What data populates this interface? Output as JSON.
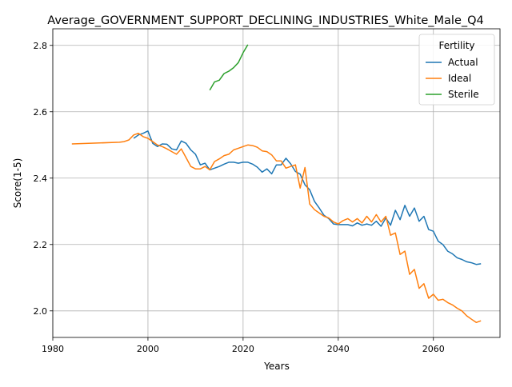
{
  "chart_data": {
    "type": "line",
    "title": "Average_GOVERNMENT_SUPPORT_DECLINING_INDUSTRIES_White_Male_Q4",
    "xlabel": "Years",
    "ylabel": "Score(1-5)",
    "xlim": [
      1980,
      2074
    ],
    "ylim": [
      1.92,
      2.85
    ],
    "xticks": [
      1980,
      2000,
      2020,
      2040,
      2060
    ],
    "yticks": [
      2.0,
      2.2,
      2.4,
      2.6,
      2.8
    ],
    "xtick_labels": [
      "1980",
      "2000",
      "2020",
      "2040",
      "2060"
    ],
    "ytick_labels": [
      "2.0",
      "2.2",
      "2.4",
      "2.6",
      "2.8"
    ],
    "grid": true,
    "legend": {
      "title": "Fertility",
      "placement": "top-right"
    },
    "series": [
      {
        "name": "Actual",
        "color": "#1f77b4",
        "x": [
          1997,
          1998,
          1999,
          2000,
          2001,
          2002,
          2003,
          2004,
          2005,
          2006,
          2007,
          2008,
          2009,
          2010,
          2011,
          2012,
          2013,
          2014,
          2015,
          2016,
          2017,
          2018,
          2019,
          2020,
          2021,
          2022,
          2023,
          2024,
          2025,
          2026,
          2027,
          2028,
          2029,
          2030,
          2031,
          2032,
          2033,
          2034,
          2035,
          2036,
          2037,
          2038,
          2039,
          2040,
          2041,
          2042,
          2043,
          2044,
          2045,
          2046,
          2047,
          2048,
          2049,
          2050,
          2051,
          2052,
          2053,
          2054,
          2055,
          2056,
          2057,
          2058,
          2059,
          2060,
          2061,
          2062,
          2063,
          2064,
          2065,
          2066,
          2067,
          2068,
          2069,
          2070
        ],
        "y": [
          2.52,
          2.53,
          2.535,
          2.542,
          2.505,
          2.495,
          2.503,
          2.502,
          2.488,
          2.485,
          2.512,
          2.505,
          2.485,
          2.472,
          2.44,
          2.445,
          2.425,
          2.43,
          2.435,
          2.442,
          2.448,
          2.448,
          2.445,
          2.448,
          2.448,
          2.442,
          2.433,
          2.418,
          2.428,
          2.413,
          2.44,
          2.44,
          2.46,
          2.443,
          2.42,
          2.412,
          2.38,
          2.365,
          2.33,
          2.31,
          2.288,
          2.278,
          2.262,
          2.26,
          2.26,
          2.26,
          2.256,
          2.265,
          2.258,
          2.262,
          2.258,
          2.27,
          2.255,
          2.28,
          2.258,
          2.303,
          2.275,
          2.318,
          2.285,
          2.31,
          2.27,
          2.285,
          2.245,
          2.24,
          2.21,
          2.2,
          2.18,
          2.172,
          2.16,
          2.155,
          2.148,
          2.145,
          2.14,
          2.142
        ]
      },
      {
        "name": "Ideal",
        "color": "#ff7f0e",
        "x": [
          1984,
          1994,
          1995,
          1996,
          1997,
          1998,
          1999,
          2000,
          2001,
          2002,
          2003,
          2004,
          2005,
          2006,
          2007,
          2008,
          2009,
          2010,
          2011,
          2012,
          2013,
          2014,
          2015,
          2016,
          2017,
          2018,
          2019,
          2020,
          2021,
          2022,
          2023,
          2024,
          2025,
          2026,
          2027,
          2028,
          2029,
          2030,
          2031,
          2032,
          2033,
          2034,
          2035,
          2036,
          2037,
          2038,
          2039,
          2040,
          2041,
          2042,
          2043,
          2044,
          2045,
          2046,
          2047,
          2048,
          2049,
          2050,
          2051,
          2052,
          2053,
          2054,
          2055,
          2056,
          2057,
          2058,
          2059,
          2060,
          2061,
          2062,
          2063,
          2064,
          2065,
          2066,
          2067,
          2068,
          2069,
          2070
        ],
        "y": [
          2.503,
          2.508,
          2.51,
          2.515,
          2.53,
          2.535,
          2.525,
          2.52,
          2.51,
          2.5,
          2.495,
          2.488,
          2.48,
          2.472,
          2.488,
          2.462,
          2.435,
          2.428,
          2.428,
          2.435,
          2.425,
          2.45,
          2.458,
          2.468,
          2.472,
          2.485,
          2.49,
          2.495,
          2.5,
          2.498,
          2.493,
          2.482,
          2.48,
          2.47,
          2.452,
          2.452,
          2.43,
          2.435,
          2.44,
          2.37,
          2.432,
          2.322,
          2.305,
          2.295,
          2.285,
          2.28,
          2.268,
          2.262,
          2.272,
          2.278,
          2.268,
          2.278,
          2.265,
          2.285,
          2.268,
          2.29,
          2.268,
          2.285,
          2.228,
          2.235,
          2.17,
          2.18,
          2.11,
          2.125,
          2.068,
          2.082,
          2.038,
          2.05,
          2.032,
          2.035,
          2.025,
          2.018,
          2.008,
          2.0,
          1.985,
          1.975,
          1.965,
          1.97
        ]
      },
      {
        "name": "Sterile",
        "color": "#2ca02c",
        "x": [
          2013,
          2014,
          2015,
          2016,
          2017,
          2018,
          2019,
          2020,
          2021
        ],
        "y": [
          2.665,
          2.69,
          2.695,
          2.715,
          2.722,
          2.733,
          2.748,
          2.778,
          2.802
        ]
      }
    ]
  }
}
